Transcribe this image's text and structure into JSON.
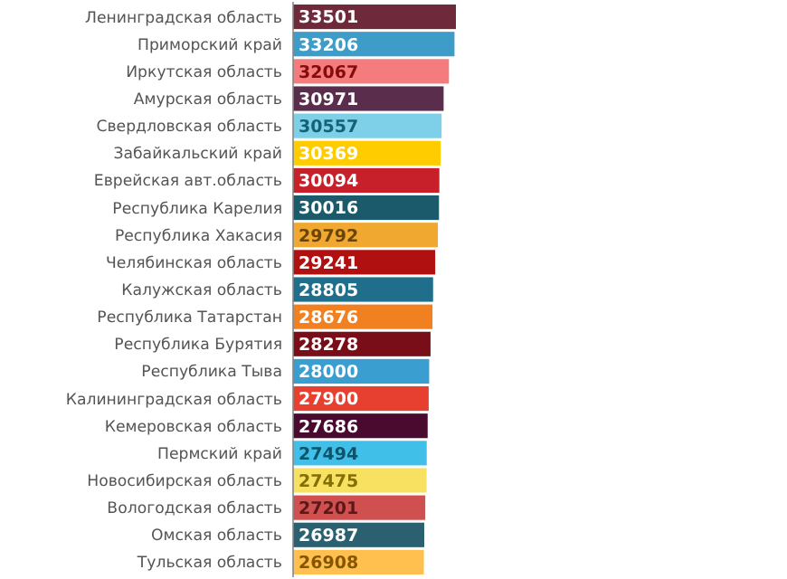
{
  "chart_data": {
    "type": "bar",
    "orientation": "horizontal",
    "relative": false,
    "data_labels": true,
    "categories": [
      "Ленинградская область",
      "Приморский край",
      "Иркутская область",
      "Амурская область",
      "Свердловская область",
      "Забайкальский край",
      "Еврейская авт.область",
      "Республика Карелия",
      "Республика Хакасия",
      "Челябинская область",
      "Калужская область",
      "Республика Татарстан",
      "Республика Бурятия",
      "Республика Тыва",
      "Калининградская область",
      "Кемеровская область",
      "Пермский край",
      "Новосибирская область",
      "Вологодская область",
      "Омская область",
      "Тульская область"
    ],
    "values": [
      33501,
      33206,
      32067,
      30971,
      30557,
      30369,
      30094,
      30016,
      29792,
      29241,
      28805,
      28676,
      28278,
      28000,
      27900,
      27686,
      27494,
      27475,
      27201,
      26987,
      26908
    ],
    "colors": [
      "#6e2a3a",
      "#3d9cc8",
      "#f47c7c",
      "#5a2d4d",
      "#7dd0e8",
      "#ffcc00",
      "#c8202a",
      "#1a5a6b",
      "#f0a830",
      "#b01010",
      "#1f6e8c",
      "#f08020",
      "#7a0e18",
      "#3a9ed0",
      "#e84030",
      "#4a0a30",
      "#40c0e8",
      "#f8e060",
      "#d05050",
      "#2a6070",
      "#ffc050"
    ]
  }
}
